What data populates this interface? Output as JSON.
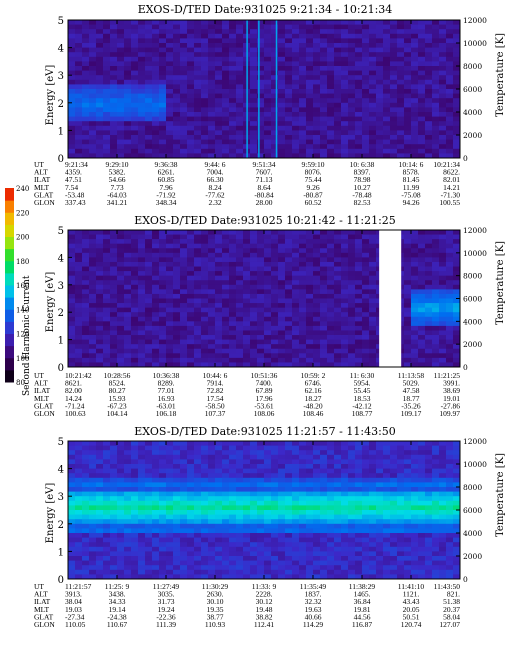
{
  "panels": [
    {
      "title": "EXOS-D/TED   Date:931025   9:21:34 - 10:21:34",
      "ylabel": "Energy [eV]",
      "ylabel2": "Temperature [K]",
      "yticks": [
        "0",
        "1",
        "2",
        "3",
        "4",
        "5"
      ],
      "yticks2": [
        "0",
        "2000",
        "4000",
        "6000",
        "8000",
        "10000",
        "12000"
      ],
      "table": {
        "rows": [
          "UT",
          "ALT",
          "ILAT",
          "MLT",
          "GLAT",
          "GLON"
        ],
        "columns": [
          [
            "9:21:34",
            "4359.",
            "47.51",
            "7.54",
            "-53.48",
            "337.43"
          ],
          [
            "9:29:10",
            "5382.",
            "54.66",
            "7.73",
            "-64.03",
            "341.21"
          ],
          [
            "9:36:38",
            "6261.",
            "60.85",
            "7.96",
            "-71.92",
            "348.34"
          ],
          [
            "9:44: 6",
            "7004.",
            "66.30",
            "8.24",
            "-77.62",
            "2.32"
          ],
          [
            "9:51:34",
            "7607.",
            "71.13",
            "8.64",
            "-80.84",
            "28.00"
          ],
          [
            "9:59:10",
            "8076.",
            "75.44",
            "9.26",
            "-80.87",
            "60.52"
          ],
          [
            "10: 6:38",
            "8397.",
            "78.98",
            "10.27",
            "-78.48",
            "82.53"
          ],
          [
            "10:14: 6",
            "8578.",
            "81.45",
            "11.99",
            "-75.08",
            "94.26"
          ],
          [
            "10:21:34",
            "8622.",
            "82.01",
            "14.21",
            "-71.30",
            "100.55"
          ]
        ]
      }
    },
    {
      "title": "EXOS-D/TED   Date:931025   10:21:42 - 11:21:25",
      "ylabel": "Energy [eV]",
      "ylabel2": "Temperature [K]",
      "yticks": [
        "0",
        "1",
        "2",
        "3",
        "4",
        "5"
      ],
      "yticks2": [
        "0",
        "2000",
        "4000",
        "6000",
        "8000",
        "10000",
        "12000"
      ],
      "table": {
        "rows": [
          "UT",
          "ALT",
          "ILAT",
          "MLT",
          "GLAT",
          "GLON"
        ],
        "columns": [
          [
            "10:21:42",
            "8621.",
            "82.00",
            "14.24",
            "-71.24",
            "100.63"
          ],
          [
            "10:28:56",
            "8524.",
            "80.27",
            "15.93",
            "-67.23",
            "104.14"
          ],
          [
            "10:36:38",
            "8289.",
            "77.01",
            "16.93",
            "-63.01",
            "106.18"
          ],
          [
            "10:44: 6",
            "7914.",
            "72.82",
            "17.54",
            "-58.50",
            "107.37"
          ],
          [
            "10:51:36",
            "7400.",
            "67.89",
            "17.96",
            "-53.61",
            "108.06"
          ],
          [
            "10:59: 2",
            "6746.",
            "62.16",
            "18.27",
            "-48.20",
            "108.46"
          ],
          [
            "11: 6:30",
            "5954.",
            "55.45",
            "18.53",
            "-42.12",
            "108.77"
          ],
          [
            "11:13:58",
            "5029.",
            "47.58",
            "18.77",
            "-35.26",
            "109.17"
          ],
          [
            "11:21:25",
            "3991.",
            "38.69",
            "19.01",
            "-27.86",
            "109.97"
          ]
        ]
      }
    },
    {
      "title": "EXOS-D/TED   Date:931025   11:21:57 - 11:43:50",
      "ylabel": "Energy [eV]",
      "ylabel2": "Temperature [K]",
      "yticks": [
        "0",
        "1",
        "2",
        "3",
        "4",
        "5"
      ],
      "yticks2": [
        "0",
        "2000",
        "4000",
        "6000",
        "8000",
        "10000",
        "12000"
      ],
      "table": {
        "rows": [
          "UT",
          "ALT",
          "ILAT",
          "MLT",
          "GLAT",
          "GLON"
        ],
        "columns": [
          [
            "11:21:57",
            "3913.",
            "38.04",
            "19.03",
            "-27.34",
            "110.05"
          ],
          [
            "11:25: 9",
            "3438.",
            "34.33",
            "19.14",
            "-24.38",
            "110.67"
          ],
          [
            "11:27:49",
            "3035.",
            "31.73",
            "19.24",
            "-22.36",
            "111.39"
          ],
          [
            "11:30:29",
            "2630.",
            "30.10",
            "19.35",
            "38.77",
            "110.93"
          ],
          [
            "11:33: 9",
            "2228.",
            "30.12",
            "19.48",
            "38.82",
            "112.41"
          ],
          [
            "11:35:49",
            "1837.",
            "32.32",
            "19.63",
            "40.66",
            "114.29"
          ],
          [
            "11:38:29",
            "1465.",
            "36.84",
            "19.81",
            "44.56",
            "116.87"
          ],
          [
            "11:41:10",
            "1121.",
            "43.43",
            "20.05",
            "50.51",
            "120.74"
          ],
          [
            "11:43:50",
            "821.",
            "51.38",
            "20.37",
            "58.04",
            "127.07"
          ]
        ]
      }
    }
  ],
  "colorbar": {
    "label": "Second Harmonic Current",
    "ticks": [
      "80",
      "100",
      "120",
      "140",
      "160",
      "180",
      "200",
      "220",
      "240"
    ]
  },
  "chart_data": [
    {
      "type": "heatmap",
      "title": "EXOS-D/TED   Date:931025   9:21:34 - 10:21:34",
      "xlabel": "UT",
      "ylabel": "Energy [eV]",
      "y2label": "Temperature [K]",
      "ylim": [
        0,
        5
      ],
      "y2lim": [
        0,
        12000
      ],
      "x": [
        "9:21:34",
        "9:29:10",
        "9:36:38",
        "9:44: 6",
        "9:51:34",
        "9:59:10",
        "10: 6:38",
        "10:14: 6",
        "10:21:34"
      ],
      "intensity_bands": [
        {
          "x_range": [
            "9:21:34",
            "9:36:38"
          ],
          "energy_range_eV": [
            1.3,
            2.6
          ],
          "level": 140
        }
      ],
      "background_level": 110,
      "spikes_at_fraction": [
        0.455,
        0.485,
        0.53
      ]
    },
    {
      "type": "heatmap",
      "title": "EXOS-D/TED   Date:931025   10:21:42 - 11:21:25",
      "xlabel": "UT",
      "ylabel": "Energy [eV]",
      "y2label": "Temperature [K]",
      "ylim": [
        0,
        5
      ],
      "y2lim": [
        0,
        12000
      ],
      "x": [
        "10:21:42",
        "10:28:56",
        "10:36:38",
        "10:44: 6",
        "10:51:36",
        "10:59: 2",
        "11: 6:30",
        "11:13:58",
        "11:21:25"
      ],
      "intensity_bands": [
        {
          "x_range": [
            "11:13:58",
            "11:21:25"
          ],
          "energy_range_eV": [
            1.5,
            2.8
          ],
          "level": 150
        }
      ],
      "background_level": 110,
      "data_gap": [
        "11: 6:30",
        "11:13:58"
      ]
    },
    {
      "type": "heatmap",
      "title": "EXOS-D/TED   Date:931025   11:21:57 - 11:43:50",
      "xlabel": "UT",
      "ylabel": "Energy [eV]",
      "y2label": "Temperature [K]",
      "ylim": [
        0,
        5
      ],
      "y2lim": [
        0,
        12000
      ],
      "x": [
        "11:21:57",
        "11:25: 9",
        "11:27:49",
        "11:30:29",
        "11:33: 9",
        "11:35:49",
        "11:38:29",
        "11:41:10",
        "11:43:50"
      ],
      "intensity_bands": [
        {
          "energy_range_eV": [
            2.0,
            3.2
          ],
          "level": 170
        },
        {
          "energy_range_eV": [
            1.6,
            2.0
          ],
          "level": 140
        },
        {
          "energy_range_eV": [
            3.2,
            3.6
          ],
          "level": 140
        }
      ],
      "background_level": 120
    }
  ]
}
